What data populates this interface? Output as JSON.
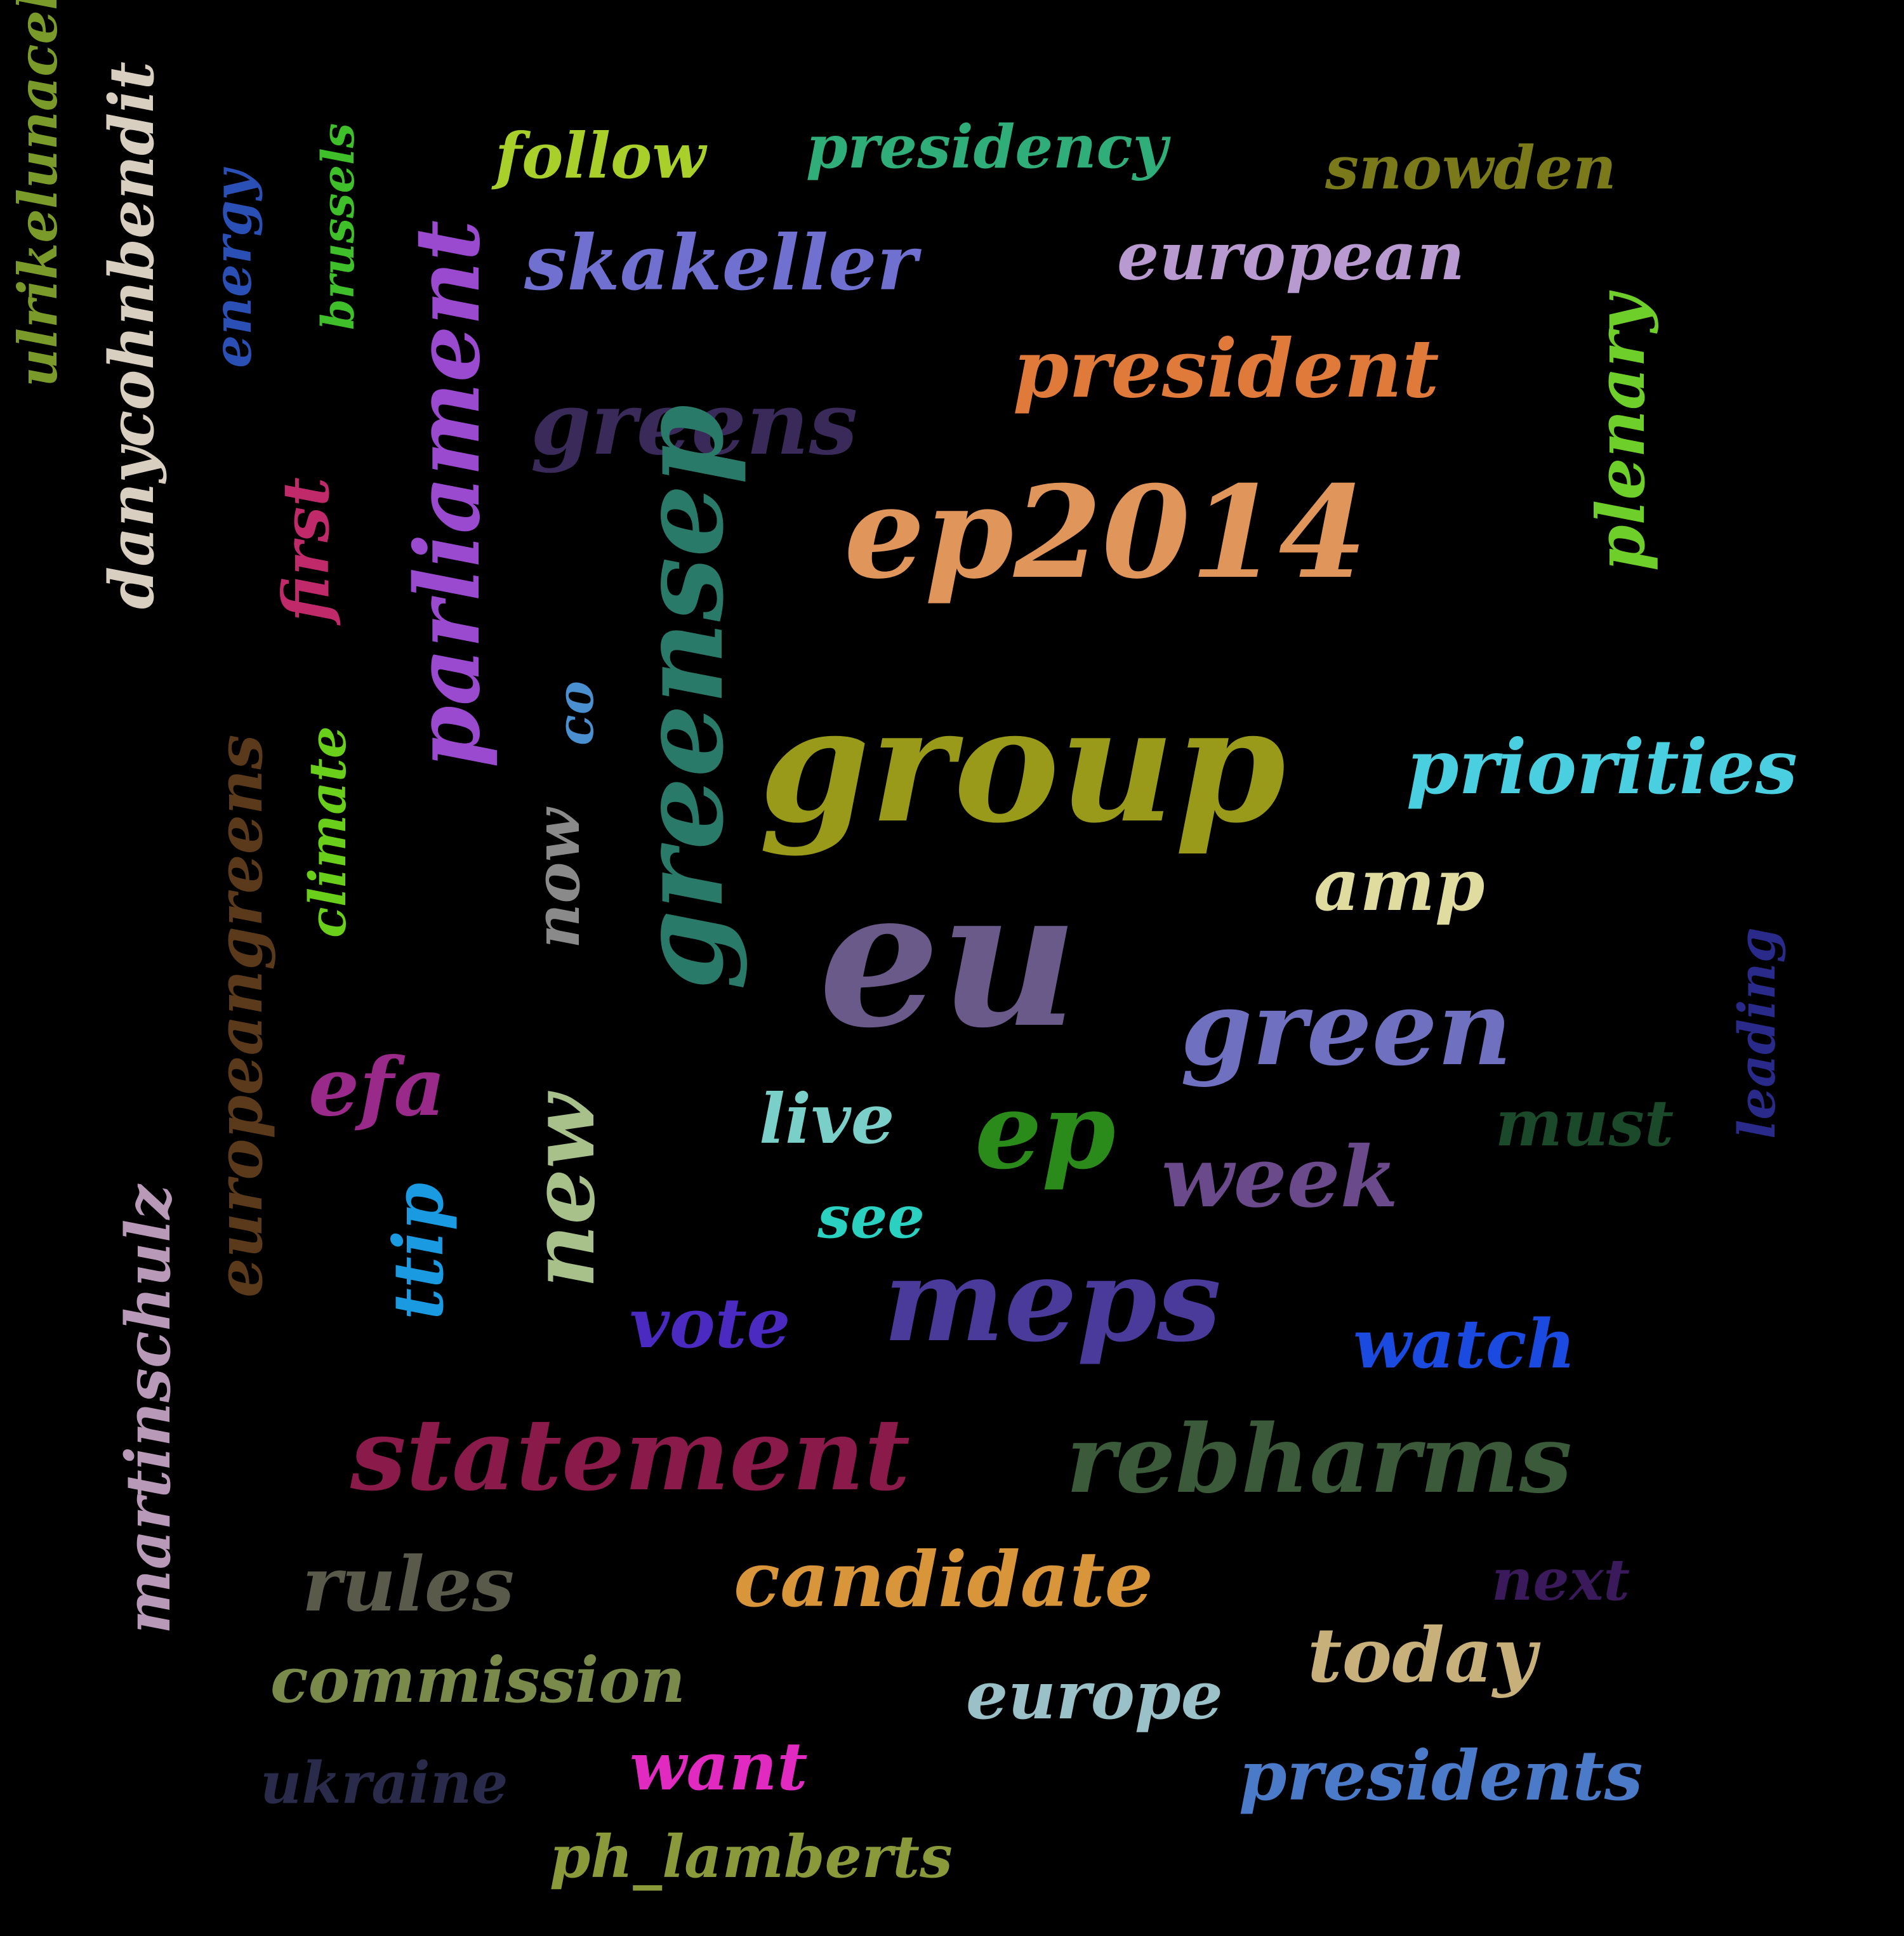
{
  "words": [
    {
      "id": "ulrikelunacek",
      "text": "ulrikelunacek",
      "color": "#7a9a2a",
      "vertical": true
    },
    {
      "id": "danycohnbendit",
      "text": "danycohnbendit",
      "color": "#d8cfc0",
      "vertical": true
    },
    {
      "id": "energy",
      "text": "energy",
      "color": "#2a4fb5",
      "vertical": true
    },
    {
      "id": "brussels",
      "text": "brussels",
      "color": "#3fbf2a",
      "vertical": true
    },
    {
      "id": "follow",
      "text": "follow",
      "color": "#a8cf2a",
      "vertical": false
    },
    {
      "id": "presidency",
      "text": "presidency",
      "color": "#2fae7a",
      "vertical": false
    },
    {
      "id": "snowden",
      "text": "snowden",
      "color": "#7a7a1a",
      "vertical": false
    },
    {
      "id": "skakeller",
      "text": "skakeller",
      "color": "#7070d0",
      "vertical": false
    },
    {
      "id": "european",
      "text": "european",
      "color": "#b89ad0",
      "vertical": false
    },
    {
      "id": "president",
      "text": "president",
      "color": "#e07a3a",
      "vertical": false
    },
    {
      "id": "parliament",
      "text": "parliament",
      "color": "#9a4acf",
      "vertical": true
    },
    {
      "id": "greens",
      "text": "greens",
      "color": "#3a2a5a",
      "vertical": false
    },
    {
      "id": "plenary",
      "text": "plenary",
      "color": "#6fcf2a",
      "vertical": true
    },
    {
      "id": "first",
      "text": "first",
      "color": "#c02a6a",
      "vertical": true
    },
    {
      "id": "ep2014",
      "text": "ep2014",
      "color": "#e0955a",
      "vertical": false
    },
    {
      "id": "co",
      "text": "co",
      "color": "#4a90d0",
      "vertical": true
    },
    {
      "id": "greensep",
      "text": "greensep",
      "color": "#2a7a6a",
      "vertical": true
    },
    {
      "id": "group",
      "text": "group",
      "color": "#9a9a1a",
      "vertical": false
    },
    {
      "id": "europeangreens",
      "text": "europeangreens",
      "color": "#5a3a1a",
      "vertical": true
    },
    {
      "id": "climate",
      "text": "climate",
      "color": "#6acf1a",
      "vertical": true
    },
    {
      "id": "now",
      "text": "now",
      "color": "#8a8a8a",
      "vertical": true
    },
    {
      "id": "priorities",
      "text": "priorities",
      "color": "#4acfe0",
      "vertical": false
    },
    {
      "id": "amp",
      "text": "amp",
      "color": "#e0dca0",
      "vertical": false
    },
    {
      "id": "eu",
      "text": "eu",
      "color": "#6a5a8a",
      "vertical": false
    },
    {
      "id": "leading",
      "text": "leading",
      "color": "#2a2a8a",
      "vertical": true
    },
    {
      "id": "green",
      "text": "green",
      "color": "#7070c0",
      "vertical": false
    },
    {
      "id": "efa",
      "text": "efa",
      "color": "#9a2a8a",
      "vertical": false
    },
    {
      "id": "new",
      "text": "new",
      "color": "#a8c08a",
      "vertical": true
    },
    {
      "id": "live",
      "text": "live",
      "color": "#7ad0c8",
      "vertical": false
    },
    {
      "id": "ep",
      "text": "ep",
      "color": "#2a8a1a",
      "vertical": false
    },
    {
      "id": "must",
      "text": "must",
      "color": "#1a4a2a",
      "vertical": false
    },
    {
      "id": "week",
      "text": "week",
      "color": "#6a4a8a",
      "vertical": false
    },
    {
      "id": "see",
      "text": "see",
      "color": "#2ad0c0",
      "vertical": false
    },
    {
      "id": "martinschulz",
      "text": "martinschulz",
      "color": "#b89ab8",
      "vertical": true
    },
    {
      "id": "ttip",
      "text": "ttip",
      "color": "#1a9ae0",
      "vertical": true
    },
    {
      "id": "meps",
      "text": "meps",
      "color": "#4a3a9a",
      "vertical": false
    },
    {
      "id": "vote",
      "text": "vote",
      "color": "#4a2ac0",
      "vertical": false
    },
    {
      "id": "watch",
      "text": "watch",
      "color": "#1a4ae0",
      "vertical": false
    },
    {
      "id": "statement",
      "text": "statement",
      "color": "#8a1a4a",
      "vertical": false
    },
    {
      "id": "rebharms",
      "text": "rebharms",
      "color": "#3a5a3a",
      "vertical": false
    },
    {
      "id": "rules",
      "text": "rules",
      "color": "#5a5a4a",
      "vertical": false
    },
    {
      "id": "candidate",
      "text": "candidate",
      "color": "#d8953a",
      "vertical": false
    },
    {
      "id": "next",
      "text": "next",
      "color": "#3a1a5a",
      "vertical": false
    },
    {
      "id": "commission",
      "text": "commission",
      "color": "#7a8a4a",
      "vertical": false
    },
    {
      "id": "today",
      "text": "today",
      "color": "#c8b07a",
      "vertical": false
    },
    {
      "id": "europe",
      "text": "europe",
      "color": "#9ac0c8",
      "vertical": false
    },
    {
      "id": "ukraine",
      "text": "ukraine",
      "color": "#2a2a4a",
      "vertical": false
    },
    {
      "id": "want",
      "text": "want",
      "color": "#e02ac0",
      "vertical": false
    },
    {
      "id": "presidents",
      "text": "presidents",
      "color": "#4a7ac8",
      "vertical": false
    },
    {
      "id": "ph_lamberts",
      "text": "ph_lamberts",
      "color": "#8a9a3a",
      "vertical": false
    }
  ]
}
